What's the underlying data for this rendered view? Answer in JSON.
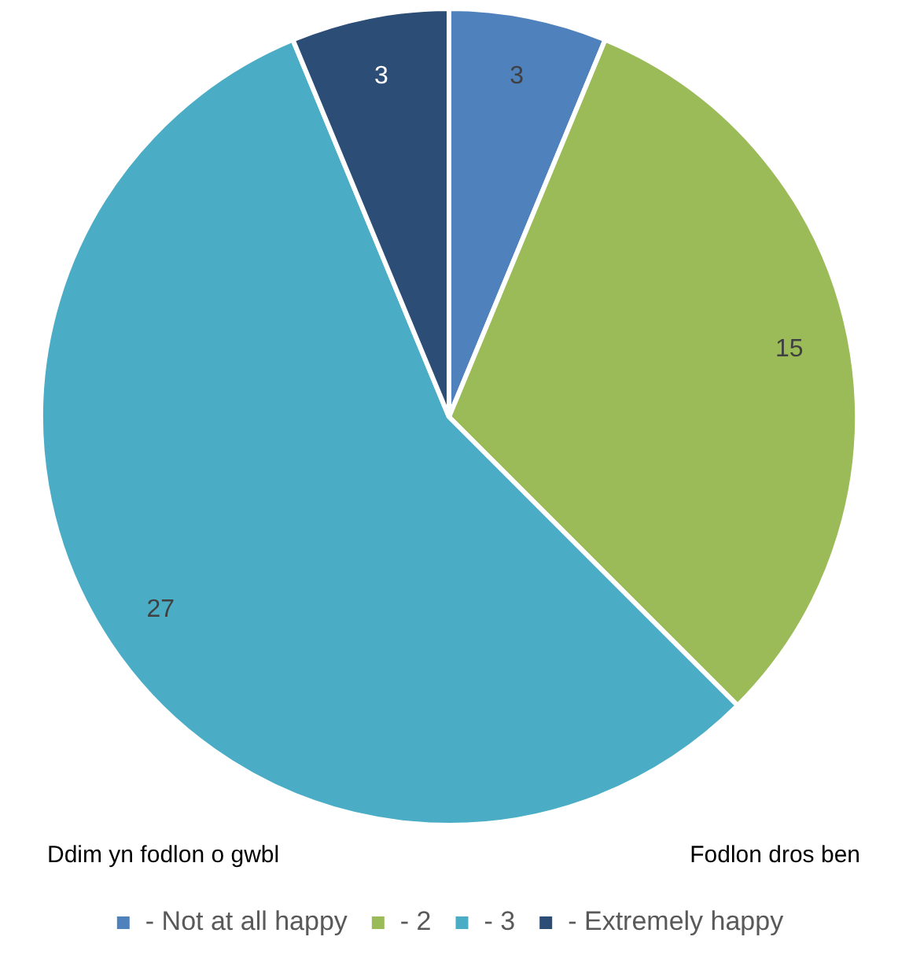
{
  "chart_data": {
    "type": "pie",
    "categories": [
      "- Not at all happy",
      "- 2",
      "- 3",
      "- Extremely happy"
    ],
    "values": [
      3,
      15,
      27,
      3
    ],
    "colors": [
      "#4f81bd",
      "#9bbb59",
      "#4bacc6",
      "#2c4d75"
    ],
    "data_labels": true,
    "legend": "bottom",
    "annotations": [
      "Ddim yn fodlon o gwbl",
      "Fodlon dros ben"
    ]
  }
}
